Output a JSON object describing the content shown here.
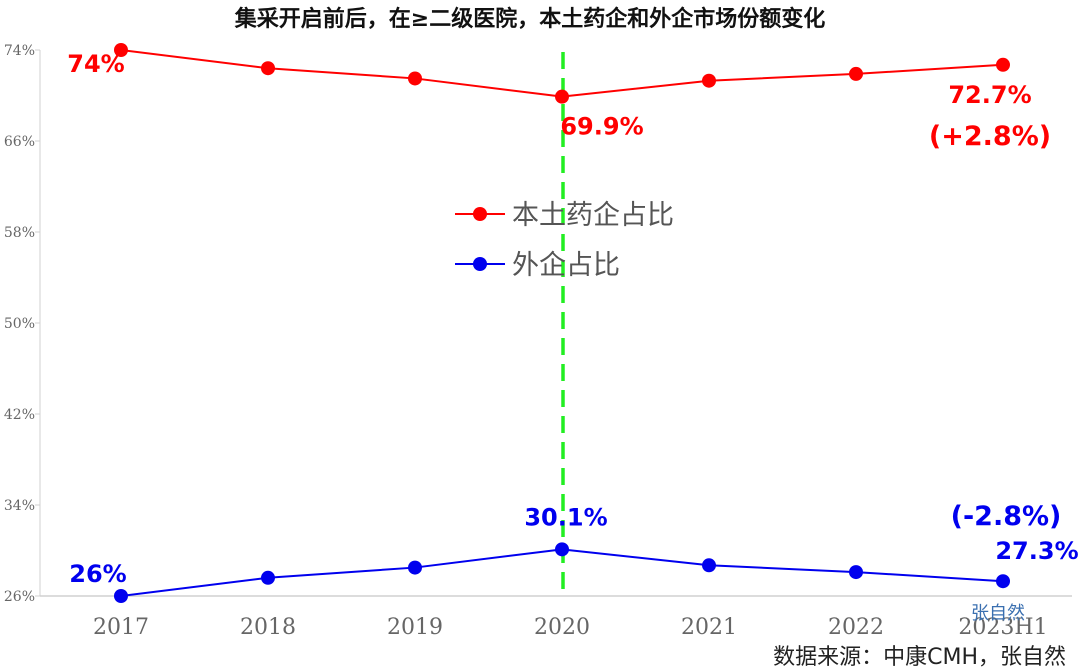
{
  "chart_data": {
    "type": "line",
    "title": "集采开启前后，在≥二级医院，本土药企和外企市场份额变化",
    "categories": [
      "2017",
      "2018",
      "2019",
      "2020",
      "2021",
      "2022",
      "2023H1"
    ],
    "y_ticks": [
      "74%",
      "66%",
      "58%",
      "50%",
      "42%",
      "34%",
      "26%"
    ],
    "ylim": [
      26,
      74
    ],
    "grid": false,
    "legend_position": "center",
    "series": [
      {
        "name": "本土药企占比",
        "color": "#ff0000",
        "values": [
          74,
          72.4,
          71.5,
          69.9,
          71.3,
          71.9,
          72.7
        ],
        "labels": [
          {
            "index": 0,
            "text": "74%"
          },
          {
            "index": 3,
            "text": "69.9%"
          },
          {
            "index": 6,
            "text": "72.7%"
          }
        ],
        "change_label": "(+2.8%)"
      },
      {
        "name": "外企占比",
        "color": "#0000ee",
        "values": [
          26,
          27.6,
          28.5,
          30.1,
          28.7,
          28.1,
          27.3
        ],
        "labels": [
          {
            "index": 0,
            "text": "26%"
          },
          {
            "index": 3,
            "text": "30.1%"
          },
          {
            "index": 6,
            "text": "27.3%"
          }
        ],
        "change_label": "(-2.8%)"
      }
    ],
    "reference_line": {
      "category": "2020",
      "color": "#22ee22",
      "style": "dashed"
    }
  },
  "watermark": "张自然",
  "source": "数据来源：中康CMH，张自然"
}
